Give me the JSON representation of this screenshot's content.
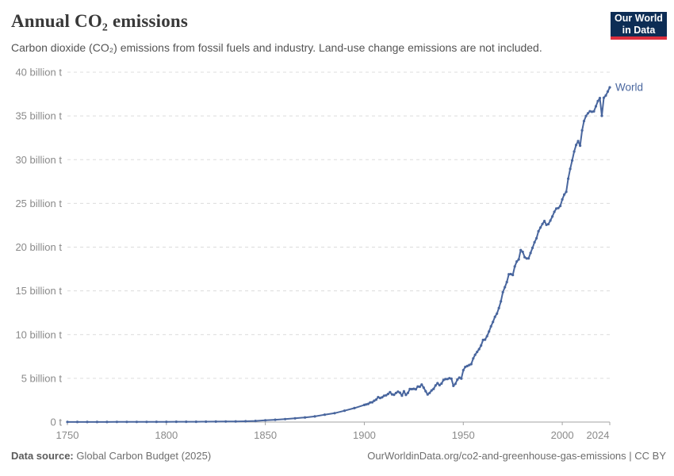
{
  "header": {
    "title": "Annual CO₂ emissions",
    "subtitle": "Carbon dioxide (CO₂) emissions from fossil fuels and industry. Land-use change emissions are not included."
  },
  "logo": {
    "line1": "Our World",
    "line2": "in Data",
    "bg_color": "#0d2d55",
    "accent_color": "#dc2f3e"
  },
  "footer": {
    "datasource_label": "Data source:",
    "datasource_value": " Global Carbon Budget (2025)",
    "right_text": "OurWorldinData.org/co2-and-greenhouse-gas-emissions | CC BY"
  },
  "chart_data": {
    "type": "line",
    "title": "Annual CO₂ emissions",
    "xlabel": "",
    "ylabel": "",
    "xlim": [
      1750,
      2024
    ],
    "ylim": [
      0,
      40
    ],
    "grid": "horizontal-dashed",
    "legend_position": "end-of-line-label",
    "xticks": [
      {
        "value": 1750,
        "label": "1750"
      },
      {
        "value": 1800,
        "label": "1800"
      },
      {
        "value": 1850,
        "label": "1850"
      },
      {
        "value": 1900,
        "label": "1900"
      },
      {
        "value": 1950,
        "label": "1950"
      },
      {
        "value": 2000,
        "label": "2000"
      },
      {
        "value": 2024,
        "label": "2024"
      }
    ],
    "yticks": [
      {
        "value": 0,
        "label": "0 t"
      },
      {
        "value": 5,
        "label": "5 billion t"
      },
      {
        "value": 10,
        "label": "10 billion t"
      },
      {
        "value": 15,
        "label": "15 billion t"
      },
      {
        "value": 20,
        "label": "20 billion t"
      },
      {
        "value": 25,
        "label": "25 billion t"
      },
      {
        "value": 30,
        "label": "30 billion t"
      },
      {
        "value": 35,
        "label": "35 billion t"
      },
      {
        "value": 40,
        "label": "40 billion t"
      }
    ],
    "unit": "billion tonnes CO₂",
    "series": [
      {
        "name": "World",
        "color": "#49669e",
        "points": [
          [
            1750,
            0.01
          ],
          [
            1755,
            0.01
          ],
          [
            1760,
            0.011
          ],
          [
            1765,
            0.012
          ],
          [
            1770,
            0.013
          ],
          [
            1775,
            0.014
          ],
          [
            1780,
            0.016
          ],
          [
            1785,
            0.018
          ],
          [
            1790,
            0.02
          ],
          [
            1795,
            0.025
          ],
          [
            1800,
            0.03
          ],
          [
            1805,
            0.032
          ],
          [
            1810,
            0.035
          ],
          [
            1815,
            0.038
          ],
          [
            1820,
            0.044
          ],
          [
            1825,
            0.052
          ],
          [
            1830,
            0.062
          ],
          [
            1835,
            0.075
          ],
          [
            1840,
            0.095
          ],
          [
            1845,
            0.13
          ],
          [
            1850,
            0.2
          ],
          [
            1855,
            0.26
          ],
          [
            1860,
            0.34
          ],
          [
            1865,
            0.43
          ],
          [
            1870,
            0.53
          ],
          [
            1875,
            0.64
          ],
          [
            1880,
            0.84
          ],
          [
            1885,
            1.02
          ],
          [
            1890,
            1.3
          ],
          [
            1895,
            1.6
          ],
          [
            1900,
            1.96
          ],
          [
            1901,
            2.02
          ],
          [
            1902,
            2.08
          ],
          [
            1903,
            2.24
          ],
          [
            1904,
            2.26
          ],
          [
            1905,
            2.44
          ],
          [
            1906,
            2.57
          ],
          [
            1907,
            2.85
          ],
          [
            1908,
            2.75
          ],
          [
            1909,
            2.83
          ],
          [
            1910,
            3.01
          ],
          [
            1911,
            3.06
          ],
          [
            1912,
            3.21
          ],
          [
            1913,
            3.41
          ],
          [
            1914,
            3.17
          ],
          [
            1915,
            3.12
          ],
          [
            1916,
            3.33
          ],
          [
            1917,
            3.47
          ],
          [
            1918,
            3.36
          ],
          [
            1919,
            3.02
          ],
          [
            1920,
            3.52
          ],
          [
            1921,
            3.1
          ],
          [
            1922,
            3.33
          ],
          [
            1923,
            3.77
          ],
          [
            1924,
            3.76
          ],
          [
            1925,
            3.8
          ],
          [
            1926,
            3.75
          ],
          [
            1927,
            4.06
          ],
          [
            1928,
            4.04
          ],
          [
            1929,
            4.29
          ],
          [
            1930,
            3.94
          ],
          [
            1931,
            3.53
          ],
          [
            1932,
            3.16
          ],
          [
            1933,
            3.33
          ],
          [
            1934,
            3.62
          ],
          [
            1935,
            3.79
          ],
          [
            1936,
            4.18
          ],
          [
            1937,
            4.44
          ],
          [
            1938,
            4.22
          ],
          [
            1939,
            4.4
          ],
          [
            1940,
            4.81
          ],
          [
            1941,
            4.91
          ],
          [
            1942,
            4.92
          ],
          [
            1943,
            5.02
          ],
          [
            1944,
            4.95
          ],
          [
            1945,
            4.14
          ],
          [
            1946,
            4.37
          ],
          [
            1947,
            4.85
          ],
          [
            1948,
            5.08
          ],
          [
            1949,
            4.97
          ],
          [
            1950,
            5.93
          ],
          [
            1951,
            6.3
          ],
          [
            1952,
            6.4
          ],
          [
            1953,
            6.52
          ],
          [
            1954,
            6.62
          ],
          [
            1955,
            7.27
          ],
          [
            1956,
            7.69
          ],
          [
            1957,
            8.02
          ],
          [
            1958,
            8.34
          ],
          [
            1959,
            8.75
          ],
          [
            1960,
            9.39
          ],
          [
            1961,
            9.42
          ],
          [
            1962,
            9.81
          ],
          [
            1963,
            10.35
          ],
          [
            1964,
            10.94
          ],
          [
            1965,
            11.45
          ],
          [
            1966,
            12.03
          ],
          [
            1967,
            12.4
          ],
          [
            1968,
            13.04
          ],
          [
            1969,
            13.8
          ],
          [
            1970,
            14.86
          ],
          [
            1971,
            15.42
          ],
          [
            1972,
            16.01
          ],
          [
            1973,
            16.9
          ],
          [
            1974,
            16.92
          ],
          [
            1975,
            16.82
          ],
          [
            1976,
            17.79
          ],
          [
            1977,
            18.36
          ],
          [
            1978,
            18.59
          ],
          [
            1979,
            19.66
          ],
          [
            1980,
            19.46
          ],
          [
            1981,
            18.85
          ],
          [
            1982,
            18.7
          ],
          [
            1983,
            18.71
          ],
          [
            1984,
            19.33
          ],
          [
            1985,
            19.92
          ],
          [
            1986,
            20.55
          ],
          [
            1987,
            21.02
          ],
          [
            1988,
            21.81
          ],
          [
            1989,
            22.24
          ],
          [
            1990,
            22.65
          ],
          [
            1991,
            22.98
          ],
          [
            1992,
            22.55
          ],
          [
            1993,
            22.63
          ],
          [
            1994,
            23.04
          ],
          [
            1995,
            23.5
          ],
          [
            1996,
            24.04
          ],
          [
            1997,
            24.41
          ],
          [
            1998,
            24.46
          ],
          [
            1999,
            24.71
          ],
          [
            2000,
            25.45
          ],
          [
            2001,
            26.01
          ],
          [
            2002,
            26.32
          ],
          [
            2003,
            27.83
          ],
          [
            2004,
            28.94
          ],
          [
            2005,
            29.91
          ],
          [
            2006,
            30.93
          ],
          [
            2007,
            31.68
          ],
          [
            2008,
            32.13
          ],
          [
            2009,
            31.6
          ],
          [
            2010,
            33.34
          ],
          [
            2011,
            34.41
          ],
          [
            2012,
            34.99
          ],
          [
            2013,
            35.3
          ],
          [
            2014,
            35.54
          ],
          [
            2015,
            35.47
          ],
          [
            2016,
            35.52
          ],
          [
            2017,
            36.1
          ],
          [
            2018,
            36.69
          ],
          [
            2019,
            37.04
          ],
          [
            2020,
            35.01
          ],
          [
            2021,
            37.08
          ],
          [
            2022,
            37.33
          ],
          [
            2023,
            37.79
          ],
          [
            2024,
            38.27
          ]
        ]
      }
    ]
  }
}
